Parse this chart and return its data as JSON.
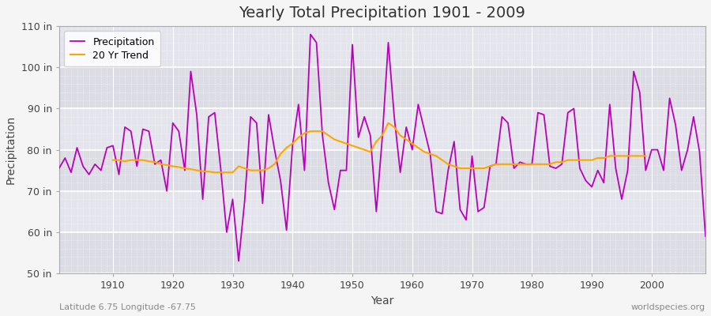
{
  "title": "Yearly Total Precipitation 1901 - 2009",
  "xlabel": "Year",
  "ylabel": "Precipitation",
  "subtitle": "Latitude 6.75 Longitude -67.75",
  "watermark": "worldspecies.org",
  "ylim": [
    50,
    110
  ],
  "yticks": [
    50,
    60,
    70,
    80,
    90,
    100,
    110
  ],
  "ytick_labels": [
    "50 in",
    "60 in",
    "70 in",
    "80 in",
    "90 in",
    "100 in",
    "110 in"
  ],
  "precip_color": "#bb00bb",
  "trend_color": "#ffa500",
  "bg_color": "#e8e8ec",
  "band_color_light": "#e0e0e8",
  "band_color_dark": "#d4d4dc",
  "years": [
    1901,
    1902,
    1903,
    1904,
    1905,
    1906,
    1907,
    1908,
    1909,
    1910,
    1911,
    1912,
    1913,
    1914,
    1915,
    1916,
    1917,
    1918,
    1919,
    1920,
    1921,
    1922,
    1923,
    1924,
    1925,
    1926,
    1927,
    1928,
    1929,
    1930,
    1931,
    1932,
    1933,
    1934,
    1935,
    1936,
    1937,
    1938,
    1939,
    1940,
    1941,
    1942,
    1943,
    1944,
    1945,
    1946,
    1947,
    1948,
    1949,
    1950,
    1951,
    1952,
    1953,
    1954,
    1955,
    1956,
    1957,
    1958,
    1959,
    1960,
    1961,
    1962,
    1963,
    1964,
    1965,
    1966,
    1967,
    1968,
    1969,
    1970,
    1971,
    1972,
    1973,
    1974,
    1975,
    1976,
    1977,
    1978,
    1979,
    1980,
    1981,
    1982,
    1983,
    1984,
    1985,
    1986,
    1987,
    1988,
    1989,
    1990,
    1991,
    1992,
    1993,
    1994,
    1995,
    1996,
    1997,
    1998,
    1999,
    2000,
    2001,
    2002,
    2003,
    2004,
    2005,
    2006,
    2007,
    2008,
    2009
  ],
  "precip": [
    75.5,
    78.0,
    74.5,
    80.5,
    76.0,
    74.0,
    76.5,
    75.0,
    80.5,
    81.0,
    74.0,
    85.5,
    84.5,
    76.0,
    85.0,
    84.5,
    76.5,
    77.5,
    70.0,
    86.5,
    84.5,
    75.0,
    99.0,
    88.5,
    68.0,
    88.0,
    89.0,
    75.5,
    60.0,
    68.0,
    53.0,
    67.5,
    88.0,
    86.5,
    67.0,
    88.5,
    80.0,
    72.5,
    60.5,
    81.0,
    91.0,
    75.0,
    108.0,
    106.0,
    83.5,
    72.0,
    65.5,
    75.0,
    75.0,
    105.5,
    83.0,
    88.0,
    83.5,
    65.0,
    83.0,
    106.0,
    88.0,
    74.5,
    85.5,
    80.0,
    91.0,
    85.0,
    79.0,
    65.0,
    64.5,
    75.0,
    82.0,
    65.5,
    63.0,
    78.5,
    65.0,
    66.0,
    76.0,
    76.5,
    88.0,
    86.5,
    75.5,
    77.0,
    76.5,
    76.5,
    89.0,
    88.5,
    76.0,
    75.5,
    76.5,
    89.0,
    90.0,
    75.5,
    72.5,
    71.0,
    75.0,
    72.0,
    91.0,
    75.5,
    68.0,
    75.0,
    99.0,
    94.0,
    75.0,
    80.0,
    80.0,
    75.0,
    92.5,
    86.0,
    75.0,
    80.0,
    88.0,
    79.5,
    59.0
  ],
  "trend": [
    null,
    null,
    null,
    null,
    null,
    null,
    null,
    null,
    null,
    77.5,
    77.5,
    77.2,
    77.5,
    77.5,
    77.5,
    77.2,
    77.0,
    76.5,
    76.3,
    76.0,
    75.8,
    75.5,
    75.3,
    75.0,
    74.8,
    74.7,
    74.5,
    74.5,
    74.5,
    74.5,
    76.0,
    75.5,
    75.0,
    75.0,
    75.0,
    75.5,
    76.5,
    79.0,
    80.5,
    81.5,
    83.0,
    84.0,
    84.5,
    84.5,
    84.5,
    83.5,
    82.5,
    82.0,
    81.5,
    81.0,
    80.5,
    80.0,
    79.5,
    82.0,
    83.5,
    86.5,
    85.5,
    83.5,
    82.5,
    81.5,
    80.5,
    79.5,
    79.0,
    78.5,
    77.5,
    76.5,
    76.0,
    75.5,
    75.5,
    75.5,
    75.5,
    75.5,
    76.0,
    76.5,
    76.5,
    76.5,
    76.5,
    76.5,
    76.5,
    76.5,
    76.5,
    76.5,
    76.5,
    77.0,
    77.0,
    77.5,
    77.5,
    77.5,
    77.5,
    77.5,
    78.0,
    78.0,
    78.5,
    78.5,
    78.5,
    78.5,
    78.5,
    78.5,
    78.5,
    null,
    null,
    null,
    null,
    null,
    null,
    null,
    null,
    null,
    null
  ]
}
